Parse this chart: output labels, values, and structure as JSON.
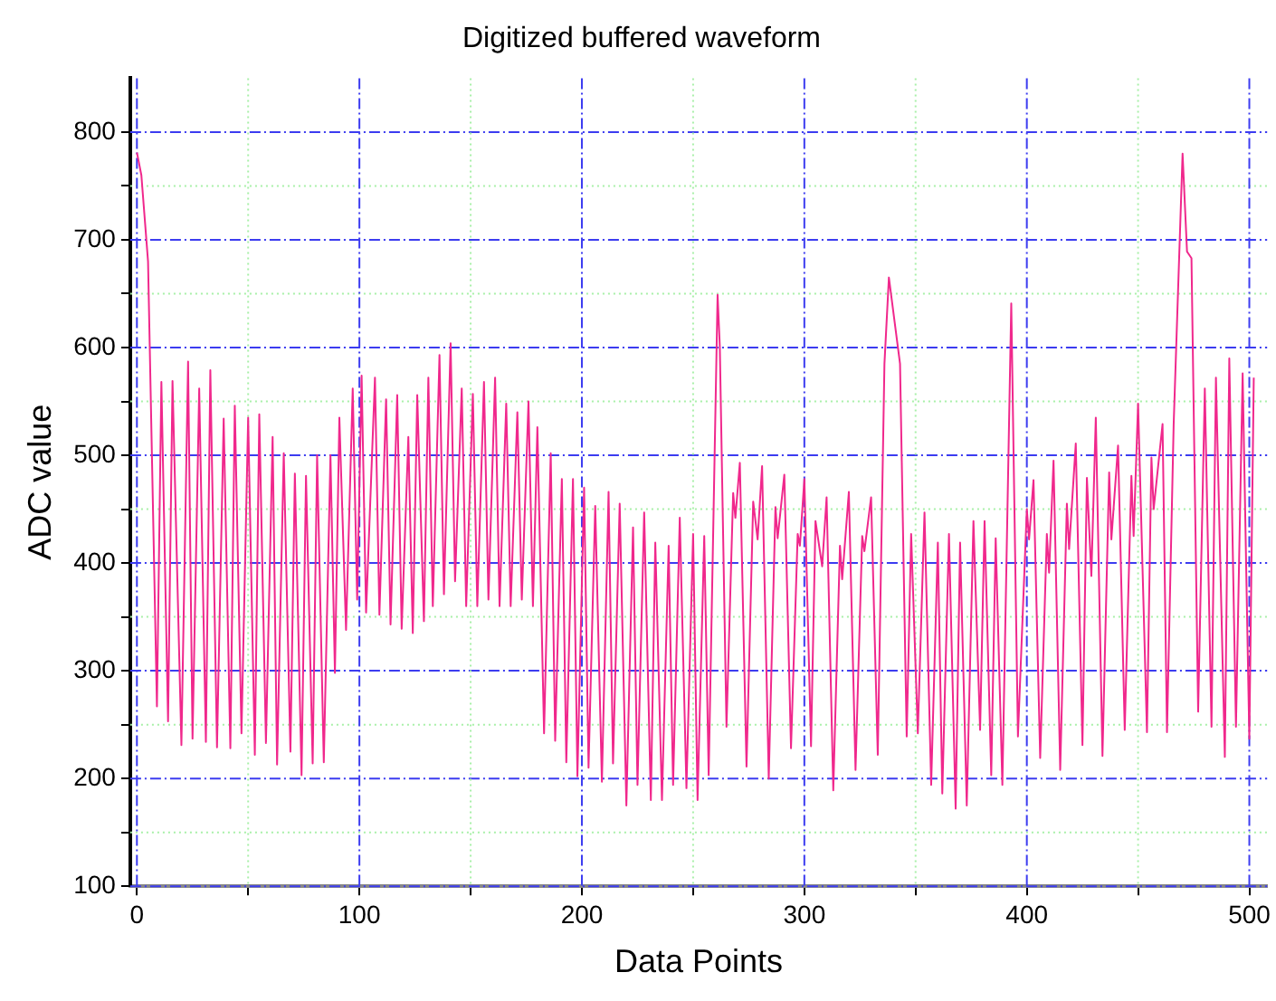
{
  "chart_data": {
    "type": "line",
    "title": "Digitized buffered waveform",
    "xlabel": "Data Points",
    "ylabel": "ADC value",
    "xlim": [
      -3,
      508
    ],
    "ylim": [
      100,
      850
    ],
    "xticks": [
      0,
      {
        "value": 50,
        "label": null
      },
      100,
      {
        "value": 150,
        "label": null
      },
      200,
      {
        "value": 250,
        "label": null
      },
      300,
      {
        "value": 350,
        "label": null
      },
      400,
      {
        "value": 450,
        "label": null
      },
      500
    ],
    "yticks": [
      100,
      {
        "value": 150,
        "label": null
      },
      200,
      {
        "value": 250,
        "label": null
      },
      300,
      {
        "value": 350,
        "label": null
      },
      400,
      {
        "value": 450,
        "label": null
      },
      500,
      {
        "value": 550,
        "label": null
      },
      600,
      {
        "value": 650,
        "label": null
      },
      700,
      {
        "value": 750,
        "label": null
      },
      800
    ],
    "grid": true,
    "legend": false,
    "marker": "none",
    "line_style": "solid",
    "series": [
      {
        "color": "#f0288c",
        "x": [
          0,
          2,
          5,
          9,
          11,
          14,
          16,
          20,
          23,
          25,
          28,
          31,
          33,
          36,
          39,
          42,
          44,
          47,
          50,
          53,
          55,
          58,
          61,
          63,
          66,
          69,
          71,
          74,
          76,
          79,
          81,
          84,
          87,
          89,
          91,
          94,
          97,
          99,
          101,
          103,
          107,
          109,
          112,
          114,
          117,
          119,
          122,
          124,
          126,
          129,
          131,
          133,
          136,
          138,
          141,
          143,
          146,
          148,
          151,
          153,
          156,
          158,
          161,
          163,
          166,
          168,
          171,
          173,
          176,
          178,
          180,
          183,
          186,
          188,
          191,
          193,
          196,
          198,
          201,
          203,
          206,
          209,
          212,
          214,
          217,
          220,
          223,
          225,
          228,
          231,
          233,
          236,
          239,
          241,
          244,
          247,
          250,
          252,
          255,
          257,
          261,
          262,
          265,
          268,
          269,
          271,
          274,
          277,
          279,
          281,
          284,
          287,
          288,
          291,
          294,
          297,
          298,
          300,
          303,
          305,
          308,
          310,
          313,
          316,
          317,
          320,
          323,
          326,
          327,
          330,
          333,
          336,
          338,
          342,
          343,
          346,
          348,
          351,
          354,
          357,
          360,
          362,
          365,
          368,
          370,
          373,
          376,
          379,
          381,
          384,
          386,
          389,
          393,
          396,
          400,
          401,
          403,
          406,
          409,
          410,
          412,
          415,
          418,
          419,
          422,
          425,
          427,
          429,
          431,
          434,
          437,
          438,
          441,
          444,
          447,
          448,
          450,
          454,
          456,
          457,
          461,
          463,
          466,
          470,
          472,
          474,
          477,
          480,
          483,
          485,
          489,
          491,
          494,
          497,
          500,
          502
        ],
        "values": [
          781,
          760,
          680,
          267,
          568,
          253,
          569,
          231,
          587,
          237,
          562,
          234,
          579,
          229,
          534,
          228,
          546,
          242,
          535,
          222,
          538,
          233,
          517,
          213,
          502,
          225,
          483,
          203,
          481,
          214,
          500,
          215,
          500,
          298,
          535,
          338,
          562,
          366,
          574,
          354,
          572,
          352,
          552,
          343,
          556,
          339,
          517,
          335,
          556,
          346,
          572,
          360,
          593,
          371,
          604,
          383,
          562,
          360,
          557,
          360,
          568,
          366,
          572,
          360,
          548,
          360,
          540,
          366,
          550,
          360,
          526,
          242,
          502,
          235,
          478,
          215,
          478,
          202,
          470,
          210,
          453,
          197,
          466,
          214,
          455,
          175,
          433,
          194,
          447,
          180,
          419,
          180,
          416,
          194,
          442,
          191,
          427,
          180,
          425,
          203,
          649,
          601,
          248,
          465,
          442,
          493,
          211,
          457,
          422,
          490,
          200,
          452,
          423,
          482,
          228,
          427,
          416,
          478,
          230,
          439,
          397,
          461,
          189,
          416,
          385,
          466,
          208,
          425,
          411,
          461,
          222,
          585,
          665,
          601,
          585,
          239,
          427,
          242,
          447,
          194,
          419,
          186,
          427,
          172,
          419,
          175,
          439,
          245,
          439,
          203,
          423,
          194,
          641,
          239,
          450,
          422,
          477,
          219,
          427,
          391,
          495,
          208,
          455,
          413,
          511,
          231,
          479,
          388,
          535,
          221,
          484,
          422,
          509,
          245,
          481,
          425,
          548,
          243,
          498,
          450,
          529,
          243,
          529,
          780,
          689,
          683,
          262,
          562,
          248,
          572,
          220,
          590,
          248,
          576,
          237,
          572
        ]
      }
    ]
  }
}
